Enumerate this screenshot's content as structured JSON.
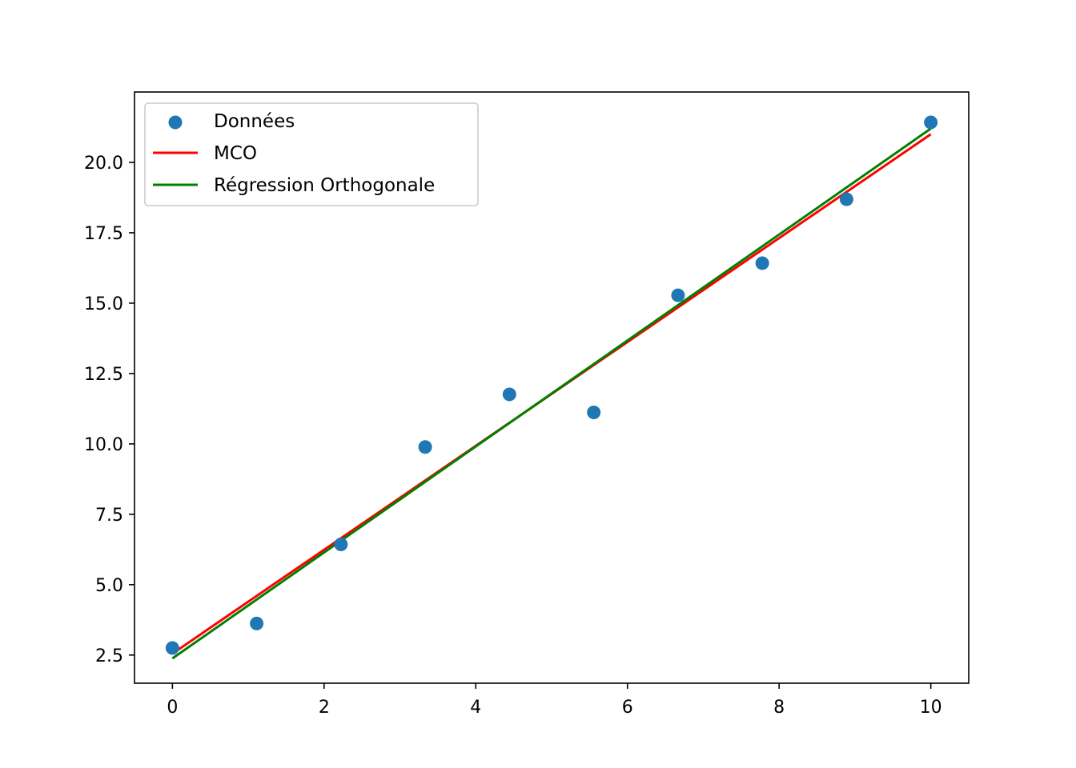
{
  "chart_data": {
    "type": "scatter",
    "title": "",
    "xlabel": "",
    "ylabel": "",
    "xlim": [
      -0.5,
      10.5
    ],
    "ylim": [
      1.5,
      22.5
    ],
    "xticks": [
      0,
      2,
      4,
      6,
      8,
      10
    ],
    "xtick_labels": [
      "0",
      "2",
      "4",
      "6",
      "8",
      "10"
    ],
    "yticks": [
      2.5,
      5.0,
      7.5,
      10.0,
      12.5,
      15.0,
      17.5,
      20.0
    ],
    "ytick_labels": [
      "2.5",
      "5.0",
      "7.5",
      "10.0",
      "12.5",
      "15.0",
      "17.5",
      "20.0"
    ],
    "grid": false,
    "legend_position": "top-left",
    "series": [
      {
        "name": "Données",
        "kind": "scatter",
        "color": "#1f77b4",
        "x": [
          0,
          1.111,
          2.222,
          3.333,
          4.444,
          5.556,
          6.667,
          7.778,
          8.889,
          10
        ],
        "y": [
          2.75,
          3.62,
          6.43,
          9.89,
          11.76,
          11.12,
          15.28,
          16.42,
          18.69,
          21.42
        ]
      },
      {
        "name": "MCO",
        "kind": "line",
        "color": "#ff0000",
        "x": [
          0,
          10
        ],
        "y": [
          2.55,
          21.0
        ]
      },
      {
        "name": "Régression Orthogonale",
        "kind": "line",
        "color": "#008000",
        "x": [
          0,
          10
        ],
        "y": [
          2.38,
          21.2
        ]
      }
    ]
  }
}
